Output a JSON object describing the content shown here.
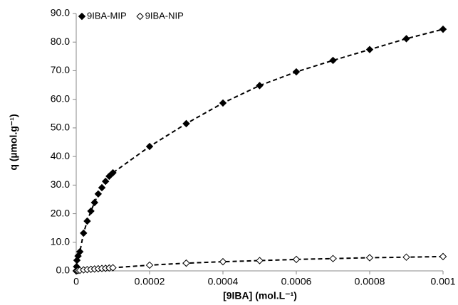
{
  "chart_data": {
    "type": "scatter",
    "x_label": "[9IBA] (mol.L⁻¹)",
    "y_label": "q (µmol.g⁻¹)",
    "x": [
      0,
      1e-06,
      2e-06,
      5e-06,
      1e-05,
      2e-05,
      3e-05,
      4e-05,
      5e-05,
      6e-05,
      7e-05,
      8e-05,
      9e-05,
      0.0001,
      0.0002,
      0.0003,
      0.0004,
      0.0005,
      0.0006,
      0.0007,
      0.0008,
      0.0009,
      0.001
    ],
    "series": [
      {
        "name": "9IBA-MIP",
        "color": "#000000",
        "fill": "#000000",
        "values": [
          0,
          1.5,
          3.7,
          5.2,
          6.7,
          13.2,
          17.4,
          20.9,
          23.9,
          26.9,
          29.1,
          31.3,
          33.1,
          34.3,
          43.5,
          51.5,
          58.7,
          64.8,
          69.6,
          73.6,
          77.4,
          81.2,
          84.5
        ]
      },
      {
        "name": "9IBA-NIP",
        "color": "#000000",
        "fill": "#ffffff",
        "values": [
          0,
          0.05,
          0.1,
          0.15,
          0.2,
          0.35,
          0.45,
          0.55,
          0.65,
          0.75,
          0.85,
          0.9,
          1.0,
          1.1,
          2.0,
          2.7,
          3.2,
          3.6,
          4.0,
          4.3,
          4.6,
          4.8,
          5.0
        ]
      }
    ],
    "xlim": [
      0,
      0.001
    ],
    "xticks": [
      0,
      0.0002,
      0.0004,
      0.0006,
      0.0008,
      0.001
    ],
    "ylim": [
      0,
      90
    ],
    "yticks": [
      {
        "value": 0,
        "label": "0.0"
      },
      {
        "value": 10,
        "label": "10.0"
      },
      {
        "value": 20,
        "label": "20.0"
      },
      {
        "value": 30,
        "label": "30.0"
      },
      {
        "value": 40,
        "label": "40.0"
      },
      {
        "value": 50,
        "label": "50.0"
      },
      {
        "value": 60,
        "label": "60.0"
      },
      {
        "value": 70,
        "label": "70.0"
      },
      {
        "value": 80,
        "label": "80.0"
      },
      {
        "value": 90,
        "label": "90.0"
      }
    ],
    "fit_line": "dashed",
    "legend_position": "top-left",
    "grid": false
  }
}
